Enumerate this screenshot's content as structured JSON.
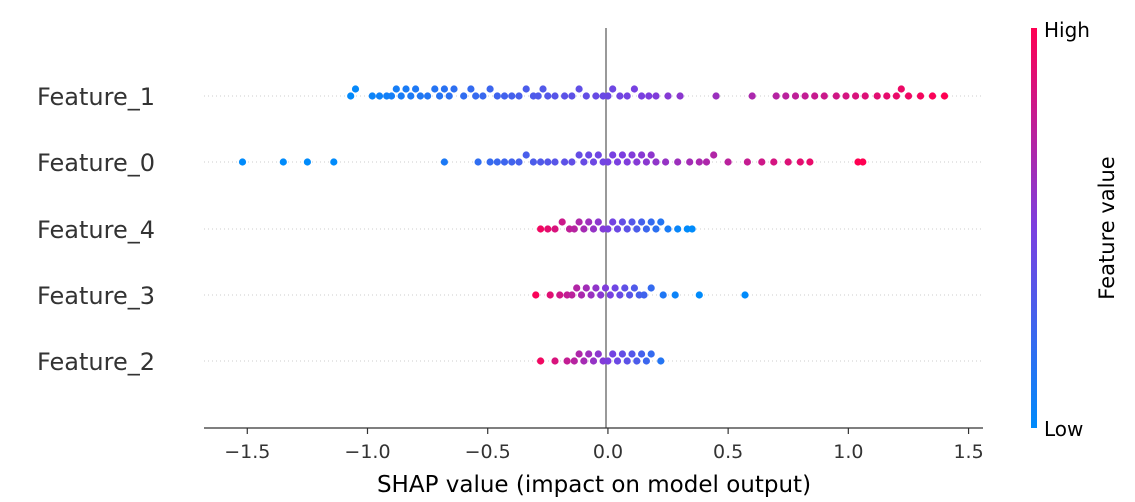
{
  "colors": {
    "low": "#008bfb",
    "mid": "#7b3fe0",
    "high": "#ff0052",
    "zero_line": "#999999",
    "grid": "#cccccc"
  },
  "chart_data": {
    "type": "scatter",
    "subtype": "shap-beeswarm",
    "xlabel": "SHAP value (impact on model output)",
    "xlim": [
      -1.68,
      1.56
    ],
    "xticks": [
      -1.5,
      -1.0,
      -0.5,
      0.0,
      0.5,
      1.0,
      1.5
    ],
    "xtick_labels": [
      "−1.5",
      "−1.0",
      "−0.5",
      "0.0",
      "0.5",
      "1.0",
      "1.5"
    ],
    "colorbar": {
      "title": "Feature value",
      "high_label": "High",
      "low_label": "Low"
    },
    "features": [
      {
        "name": "Feature_1",
        "points": [
          [
            -1.07,
            0.2
          ],
          [
            -1.05,
            0.1
          ],
          [
            -0.98,
            0.1
          ],
          [
            -0.95,
            0.1
          ],
          [
            -0.92,
            0.3
          ],
          [
            -0.9,
            0.1
          ],
          [
            -0.88,
            0.0
          ],
          [
            -0.86,
            0.2
          ],
          [
            -0.84,
            0.1
          ],
          [
            -0.82,
            0.0
          ],
          [
            -0.8,
            0.1
          ],
          [
            -0.78,
            0.2
          ],
          [
            -0.75,
            0.1
          ],
          [
            -0.72,
            0.1
          ],
          [
            -0.7,
            0.3
          ],
          [
            -0.68,
            0.1
          ],
          [
            -0.66,
            0.0
          ],
          [
            -0.64,
            0.2
          ],
          [
            -0.6,
            0.1
          ],
          [
            -0.57,
            0.1
          ],
          [
            -0.55,
            0.2
          ],
          [
            -0.52,
            0.1
          ],
          [
            -0.49,
            0.0
          ],
          [
            -0.46,
            0.1
          ],
          [
            -0.43,
            0.2
          ],
          [
            -0.4,
            0.1
          ],
          [
            -0.37,
            0.2
          ],
          [
            -0.34,
            0.1
          ],
          [
            -0.31,
            0.1
          ],
          [
            -0.29,
            0.3
          ],
          [
            -0.27,
            0.0
          ],
          [
            -0.25,
            0.1
          ],
          [
            -0.22,
            0.1
          ],
          [
            -0.18,
            0.1
          ],
          [
            -0.15,
            0.2
          ],
          [
            -0.12,
            0.1
          ],
          [
            -0.09,
            0.1
          ],
          [
            -0.05,
            0.1
          ],
          [
            -0.02,
            0.1
          ],
          [
            0.0,
            0.2
          ],
          [
            0.02,
            0.1
          ],
          [
            0.05,
            0.1
          ],
          [
            0.08,
            0.1
          ],
          [
            0.11,
            0.2
          ],
          [
            0.14,
            0.1
          ],
          [
            0.17,
            0.1
          ],
          [
            0.2,
            0.1
          ],
          [
            0.25,
            0.2
          ],
          [
            0.3,
            0.1
          ],
          [
            0.45,
            0.1
          ],
          [
            0.6,
            0.2
          ],
          [
            0.7,
            0.1
          ],
          [
            0.74,
            0.1
          ],
          [
            0.78,
            0.2
          ],
          [
            0.82,
            0.1
          ],
          [
            0.86,
            0.1
          ],
          [
            0.9,
            0.2
          ],
          [
            0.95,
            0.1
          ],
          [
            0.99,
            0.1
          ],
          [
            1.03,
            0.3
          ],
          [
            1.07,
            0.1
          ],
          [
            1.12,
            0.1
          ],
          [
            1.16,
            0.2
          ],
          [
            1.2,
            0.1
          ],
          [
            1.22,
            0.1
          ],
          [
            1.25,
            0.2
          ],
          [
            1.3,
            0.1
          ],
          [
            1.35,
            0.1
          ],
          [
            1.4,
            0.1
          ]
        ]
      },
      {
        "name": "Feature_0",
        "points": [
          [
            -1.52,
            0.1
          ],
          [
            -1.35,
            0.1
          ],
          [
            -1.25,
            0.1
          ],
          [
            -1.14,
            0.1
          ],
          [
            -0.68,
            0.1
          ],
          [
            -0.54,
            0.1
          ],
          [
            -0.49,
            0.1
          ],
          [
            -0.46,
            0.1
          ],
          [
            -0.43,
            0.1
          ],
          [
            -0.4,
            0.1
          ],
          [
            -0.37,
            0.1
          ],
          [
            -0.34,
            0.1
          ],
          [
            -0.31,
            0.1
          ],
          [
            -0.28,
            0.1
          ],
          [
            -0.25,
            0.1
          ],
          [
            -0.22,
            0.1
          ],
          [
            -0.18,
            0.1
          ],
          [
            -0.15,
            0.1
          ],
          [
            -0.12,
            0.1
          ],
          [
            -0.1,
            0.1
          ],
          [
            -0.08,
            0.2
          ],
          [
            -0.06,
            0.1
          ],
          [
            -0.04,
            0.1
          ],
          [
            -0.02,
            0.1
          ],
          [
            0.0,
            0.2
          ],
          [
            0.02,
            0.1
          ],
          [
            0.04,
            0.2
          ],
          [
            0.06,
            0.1
          ],
          [
            0.08,
            0.2
          ],
          [
            0.1,
            0.1
          ],
          [
            0.12,
            0.3
          ],
          [
            0.14,
            0.1
          ],
          [
            0.16,
            0.2
          ],
          [
            0.18,
            0.1
          ],
          [
            0.2,
            0.1
          ],
          [
            0.24,
            0.1
          ],
          [
            0.29,
            0.1
          ],
          [
            0.34,
            0.1
          ],
          [
            0.38,
            0.2
          ],
          [
            0.41,
            0.1
          ],
          [
            0.44,
            0.1
          ],
          [
            0.5,
            0.1
          ],
          [
            0.58,
            0.2
          ],
          [
            0.64,
            0.1
          ],
          [
            0.69,
            0.1
          ],
          [
            0.75,
            0.2
          ],
          [
            0.8,
            0.1
          ],
          [
            0.84,
            0.1
          ],
          [
            1.04,
            0.1
          ],
          [
            1.06,
            0.1
          ]
        ]
      },
      {
        "name": "Feature_4",
        "points": [
          [
            -0.28,
            0.1
          ],
          [
            -0.25,
            0.1
          ],
          [
            -0.22,
            0.1
          ],
          [
            -0.19,
            0.1
          ],
          [
            -0.16,
            0.1
          ],
          [
            -0.14,
            0.2
          ],
          [
            -0.12,
            0.1
          ],
          [
            -0.1,
            0.1
          ],
          [
            -0.08,
            0.1
          ],
          [
            -0.06,
            0.2
          ],
          [
            -0.04,
            0.1
          ],
          [
            -0.02,
            0.2
          ],
          [
            0.0,
            0.1
          ],
          [
            0.02,
            0.1
          ],
          [
            0.04,
            0.1
          ],
          [
            0.06,
            0.1
          ],
          [
            0.08,
            0.1
          ],
          [
            0.1,
            0.1
          ],
          [
            0.12,
            0.1
          ],
          [
            0.14,
            0.1
          ],
          [
            0.16,
            0.1
          ],
          [
            0.18,
            0.1
          ],
          [
            0.2,
            0.1
          ],
          [
            0.22,
            0.1
          ],
          [
            0.25,
            0.1
          ],
          [
            0.29,
            0.1
          ],
          [
            0.33,
            0.1
          ],
          [
            0.35,
            0.1
          ]
        ]
      },
      {
        "name": "Feature_3",
        "points": [
          [
            -0.3,
            0.1
          ],
          [
            -0.24,
            0.1
          ],
          [
            -0.2,
            0.1
          ],
          [
            -0.17,
            0.1
          ],
          [
            -0.15,
            0.1
          ],
          [
            -0.13,
            0.1
          ],
          [
            -0.11,
            0.2
          ],
          [
            -0.09,
            0.1
          ],
          [
            -0.07,
            0.1
          ],
          [
            -0.05,
            0.2
          ],
          [
            -0.03,
            0.1
          ],
          [
            -0.01,
            0.2
          ],
          [
            0.01,
            0.1
          ],
          [
            0.03,
            0.1
          ],
          [
            0.05,
            0.1
          ],
          [
            0.07,
            0.2
          ],
          [
            0.09,
            0.1
          ],
          [
            0.11,
            0.1
          ],
          [
            0.13,
            0.1
          ],
          [
            0.15,
            0.1
          ],
          [
            0.18,
            0.1
          ],
          [
            0.23,
            0.1
          ],
          [
            0.28,
            0.1
          ],
          [
            0.38,
            0.1
          ],
          [
            0.57,
            0.1
          ]
        ]
      },
      {
        "name": "Feature_2",
        "points": [
          [
            -0.28,
            0.1
          ],
          [
            -0.22,
            0.1
          ],
          [
            -0.17,
            0.1
          ],
          [
            -0.14,
            0.1
          ],
          [
            -0.12,
            0.1
          ],
          [
            -0.1,
            0.1
          ],
          [
            -0.08,
            0.1
          ],
          [
            -0.06,
            0.1
          ],
          [
            -0.04,
            0.2
          ],
          [
            -0.02,
            0.1
          ],
          [
            0.0,
            0.1
          ],
          [
            0.02,
            0.1
          ],
          [
            0.04,
            0.1
          ],
          [
            0.06,
            0.1
          ],
          [
            0.08,
            0.1
          ],
          [
            0.1,
            0.1
          ],
          [
            0.12,
            0.1
          ],
          [
            0.14,
            0.1
          ],
          [
            0.16,
            0.1
          ],
          [
            0.18,
            0.1
          ],
          [
            0.22,
            0.1
          ]
        ]
      }
    ]
  }
}
